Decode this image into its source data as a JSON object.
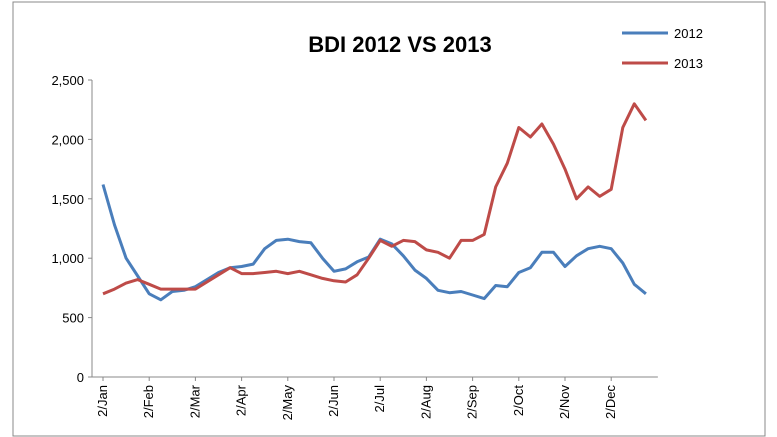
{
  "chart_data": {
    "type": "line",
    "title": "BDI 2012 VS 2013",
    "categories": [
      "2/Jan",
      null,
      null,
      null,
      "2/Feb",
      null,
      null,
      null,
      "2/Mar",
      null,
      null,
      null,
      "2/Apr",
      null,
      null,
      null,
      "2/May",
      null,
      null,
      null,
      "2/Jun",
      null,
      null,
      null,
      "2/Jul",
      null,
      null,
      null,
      "2/Aug",
      null,
      null,
      null,
      "2/Sep",
      null,
      null,
      null,
      "2/Oct",
      null,
      null,
      null,
      "2/Nov",
      null,
      null,
      null,
      "2/Dec",
      null,
      null,
      null
    ],
    "series": [
      {
        "name": "2012",
        "color": "#4a7ebb",
        "values": [
          1620,
          1280,
          1000,
          850,
          700,
          650,
          720,
          730,
          760,
          820,
          880,
          920,
          930,
          950,
          1080,
          1150,
          1160,
          1140,
          1130,
          1000,
          890,
          910,
          970,
          1010,
          1160,
          1120,
          1020,
          900,
          830,
          730,
          710,
          720,
          690,
          660,
          770,
          760,
          880,
          920,
          1050,
          1050,
          930,
          1020,
          1080,
          1100,
          1080,
          960,
          780,
          700
        ]
      },
      {
        "name": "2013",
        "color": "#be4b48",
        "values": [
          700,
          740,
          790,
          820,
          780,
          740,
          740,
          740,
          740,
          800,
          860,
          920,
          870,
          870,
          880,
          890,
          870,
          890,
          860,
          830,
          810,
          800,
          860,
          1000,
          1150,
          1100,
          1150,
          1140,
          1070,
          1050,
          1000,
          1150,
          1150,
          1200,
          1600,
          1800,
          2100,
          2020,
          2130,
          1960,
          1750,
          1500,
          1600,
          1520,
          1580,
          2100,
          2300,
          2160
        ]
      }
    ],
    "ylim": [
      0,
      2500
    ],
    "yticks": [
      0,
      {
        "value": 500,
        "label": "500"
      },
      {
        "value": 1000,
        "label": "1,000"
      },
      {
        "value": 1500,
        "label": "1,500"
      },
      {
        "value": 2000,
        "label": "2,000"
      },
      {
        "value": 2500,
        "label": "2,500"
      }
    ],
    "legend": "top-right"
  }
}
